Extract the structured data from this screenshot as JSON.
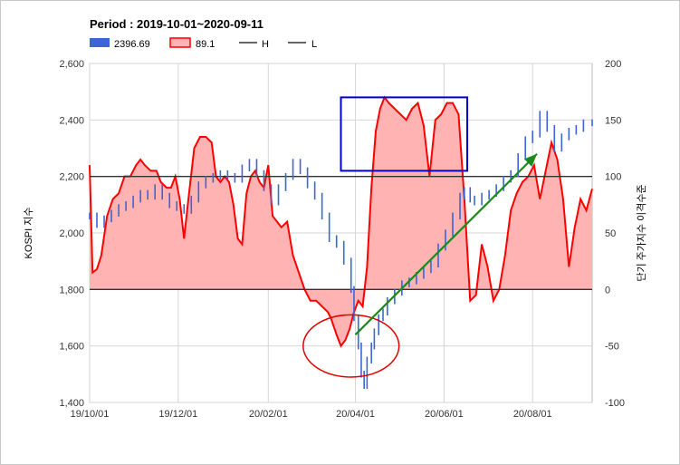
{
  "chart_data": {
    "type": "line",
    "title": "Period : 2019-10-01~2020-09-11",
    "legend": [
      {
        "label": "2396.69",
        "color": "#3a66d6",
        "kind": "box"
      },
      {
        "label": "89.1",
        "color": "#ff0000",
        "fill": "#ffb3b3",
        "kind": "area"
      },
      {
        "label": "H",
        "color": "#333333",
        "kind": "line"
      },
      {
        "label": "L",
        "color": "#333333",
        "kind": "line"
      }
    ],
    "ylabel_left": "KOSPI 지수",
    "ylabel_right": "단기 주가지수 이격수준",
    "x_ticks": [
      "19/10/01",
      "19/12/01",
      "20/02/01",
      "20/04/01",
      "20/06/01",
      "20/08/01"
    ],
    "x_tick_days": [
      0,
      61,
      123,
      183,
      244,
      305
    ],
    "x_range_days": [
      0,
      346
    ],
    "y_left": {
      "range": [
        1400,
        2600
      ],
      "ticks": [
        "1,400",
        "1,600",
        "1,800",
        "2,000",
        "2,200",
        "2,400",
        "2,600"
      ],
      "tick_values": [
        1400,
        1600,
        1800,
        2000,
        2200,
        2400,
        2600
      ]
    },
    "y_right": {
      "range": [
        -100,
        200
      ],
      "ticks": [
        "-100",
        "-50",
        "0",
        "50",
        "100",
        "150",
        "200"
      ],
      "tick_values": [
        -100,
        -50,
        0,
        50,
        100,
        150,
        200
      ]
    },
    "reference_lines": {
      "H": 100,
      "L": 0
    },
    "series": [
      {
        "name": "2396.69",
        "axis": "left",
        "style": "candlestick",
        "color": "#3a66d6",
        "points": [
          [
            0,
            2060
          ],
          [
            5,
            2030
          ],
          [
            10,
            2050
          ],
          [
            15,
            2070
          ],
          [
            20,
            2090
          ],
          [
            25,
            2100
          ],
          [
            30,
            2120
          ],
          [
            35,
            2140
          ],
          [
            40,
            2130
          ],
          [
            45,
            2160
          ],
          [
            50,
            2130
          ],
          [
            55,
            2100
          ],
          [
            60,
            2090
          ],
          [
            65,
            2080
          ],
          [
            70,
            2120
          ],
          [
            75,
            2170
          ],
          [
            80,
            2190
          ],
          [
            85,
            2200
          ],
          [
            90,
            2210
          ],
          [
            95,
            2200
          ],
          [
            100,
            2190
          ],
          [
            105,
            2230
          ],
          [
            110,
            2250
          ],
          [
            115,
            2210
          ],
          [
            120,
            2160
          ],
          [
            125,
            2110
          ],
          [
            130,
            2160
          ],
          [
            135,
            2200
          ],
          [
            140,
            2250
          ],
          [
            145,
            2220
          ],
          [
            150,
            2170
          ],
          [
            155,
            2130
          ],
          [
            160,
            2060
          ],
          [
            165,
            1980
          ],
          [
            170,
            1960
          ],
          [
            175,
            1900
          ],
          [
            180,
            1800
          ],
          [
            182,
            1700
          ],
          [
            185,
            1600
          ],
          [
            187,
            1500
          ],
          [
            189,
            1460
          ],
          [
            191,
            1550
          ],
          [
            194,
            1600
          ],
          [
            196,
            1650
          ],
          [
            199,
            1700
          ],
          [
            202,
            1720
          ],
          [
            205,
            1760
          ],
          [
            210,
            1790
          ],
          [
            215,
            1820
          ],
          [
            220,
            1830
          ],
          [
            225,
            1850
          ],
          [
            230,
            1870
          ],
          [
            235,
            1890
          ],
          [
            240,
            1950
          ],
          [
            245,
            2000
          ],
          [
            250,
            2060
          ],
          [
            255,
            2130
          ],
          [
            258,
            2150
          ],
          [
            262,
            2120
          ],
          [
            265,
            2110
          ],
          [
            270,
            2130
          ],
          [
            275,
            2140
          ],
          [
            280,
            2160
          ],
          [
            285,
            2190
          ],
          [
            290,
            2210
          ],
          [
            295,
            2270
          ],
          [
            300,
            2330
          ],
          [
            305,
            2350
          ],
          [
            310,
            2420
          ],
          [
            315,
            2370
          ],
          [
            320,
            2300
          ],
          [
            325,
            2340
          ],
          [
            330,
            2360
          ],
          [
            335,
            2370
          ],
          [
            340,
            2390
          ],
          [
            346,
            2390
          ]
        ]
      },
      {
        "name": "89.1",
        "axis": "right",
        "style": "area",
        "color": "#ff0000",
        "fill": "#ffb3b3",
        "points": [
          [
            0,
            110
          ],
          [
            2,
            15
          ],
          [
            5,
            18
          ],
          [
            8,
            30
          ],
          [
            12,
            65
          ],
          [
            16,
            80
          ],
          [
            20,
            85
          ],
          [
            24,
            100
          ],
          [
            28,
            100
          ],
          [
            32,
            110
          ],
          [
            35,
            115
          ],
          [
            38,
            110
          ],
          [
            42,
            105
          ],
          [
            46,
            105
          ],
          [
            49,
            95
          ],
          [
            53,
            90
          ],
          [
            56,
            90
          ],
          [
            59,
            100
          ],
          [
            62,
            80
          ],
          [
            65,
            45
          ],
          [
            68,
            80
          ],
          [
            72,
            125
          ],
          [
            76,
            135
          ],
          [
            80,
            135
          ],
          [
            84,
            130
          ],
          [
            87,
            100
          ],
          [
            90,
            95
          ],
          [
            93,
            100
          ],
          [
            96,
            95
          ],
          [
            99,
            75
          ],
          [
            102,
            45
          ],
          [
            105,
            40
          ],
          [
            108,
            85
          ],
          [
            111,
            100
          ],
          [
            114,
            105
          ],
          [
            117,
            95
          ],
          [
            120,
            90
          ],
          [
            123,
            110
          ],
          [
            126,
            65
          ],
          [
            129,
            60
          ],
          [
            132,
            55
          ],
          [
            136,
            60
          ],
          [
            140,
            30
          ],
          [
            144,
            15
          ],
          [
            148,
            0
          ],
          [
            152,
            -10
          ],
          [
            156,
            -10
          ],
          [
            160,
            -15
          ],
          [
            164,
            -20
          ],
          [
            166,
            -25
          ],
          [
            170,
            -40
          ],
          [
            173,
            -50
          ],
          [
            176,
            -45
          ],
          [
            179,
            -35
          ],
          [
            182,
            -20
          ],
          [
            185,
            -10
          ],
          [
            188,
            -15
          ],
          [
            191,
            20
          ],
          [
            194,
            90
          ],
          [
            197,
            140
          ],
          [
            200,
            160
          ],
          [
            203,
            170
          ],
          [
            206,
            165
          ],
          [
            210,
            160
          ],
          [
            214,
            155
          ],
          [
            218,
            150
          ],
          [
            222,
            160
          ],
          [
            226,
            165
          ],
          [
            230,
            145
          ],
          [
            234,
            100
          ],
          [
            238,
            150
          ],
          [
            242,
            155
          ],
          [
            246,
            165
          ],
          [
            250,
            165
          ],
          [
            254,
            155
          ],
          [
            258,
            80
          ],
          [
            262,
            -10
          ],
          [
            266,
            -5
          ],
          [
            270,
            40
          ],
          [
            274,
            20
          ],
          [
            278,
            -10
          ],
          [
            282,
            0
          ],
          [
            286,
            30
          ],
          [
            290,
            70
          ],
          [
            294,
            85
          ],
          [
            298,
            95
          ],
          [
            302,
            100
          ],
          [
            306,
            110
          ],
          [
            310,
            80
          ],
          [
            314,
            105
          ],
          [
            318,
            130
          ],
          [
            322,
            115
          ],
          [
            326,
            80
          ],
          [
            330,
            20
          ],
          [
            334,
            55
          ],
          [
            338,
            80
          ],
          [
            342,
            70
          ],
          [
            346,
            89
          ]
        ]
      }
    ],
    "annotations": [
      {
        "shape": "ellipse",
        "color": "#e00000",
        "center": [
          180,
          1600
        ],
        "radius_x": 33,
        "radius_y": 110
      },
      {
        "shape": "rect",
        "color": "#0000cc",
        "from": [
          173,
          2220
        ],
        "to": [
          260,
          2480
        ]
      },
      {
        "shape": "arrow",
        "color": "#1a8a1a",
        "from": [
          183,
          1640
        ],
        "to": [
          308,
          2280
        ]
      }
    ],
    "grid": true
  }
}
